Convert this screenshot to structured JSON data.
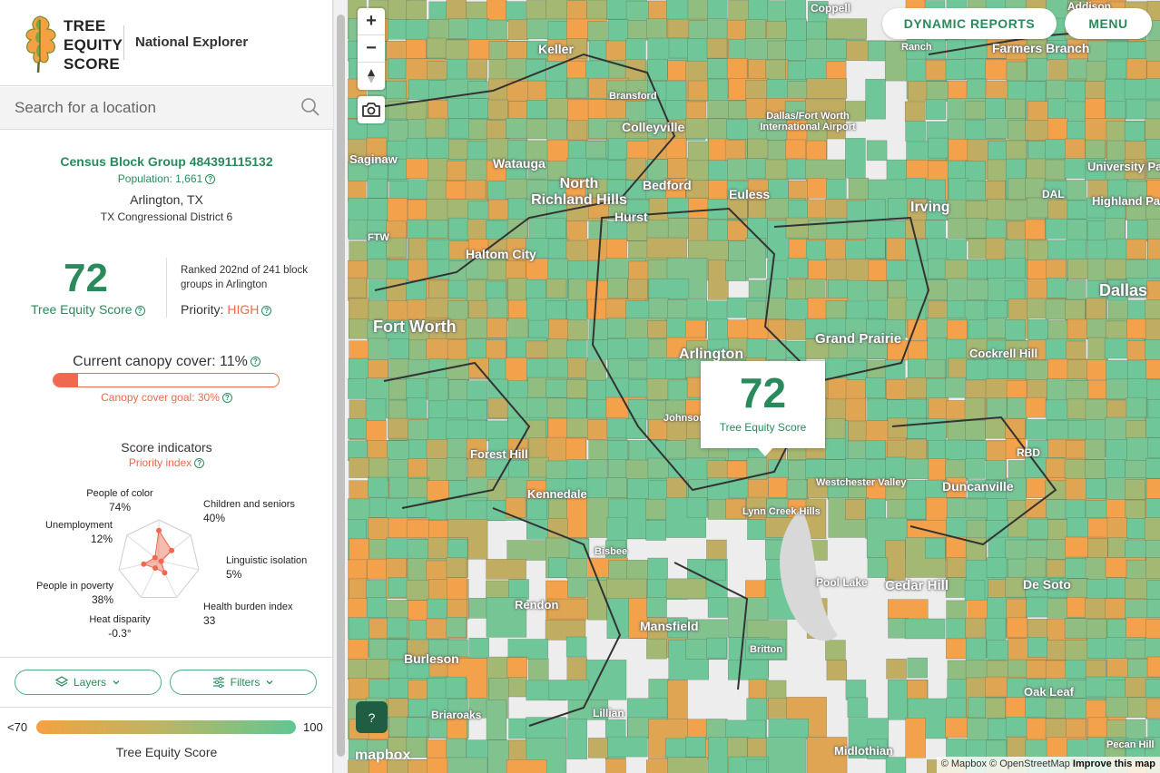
{
  "header": {
    "logo_lines": [
      "TREE",
      "EQUITY",
      "SCORE"
    ],
    "subtitle": "National Explorer"
  },
  "search": {
    "placeholder": "Search for a location"
  },
  "block": {
    "title": "Census Block Group 484391115132",
    "population": "Population: 1,661",
    "city": "Arlington, TX",
    "district": "TX Congressional District 6"
  },
  "score": {
    "value": "72",
    "label": "Tree Equity Score",
    "ranked": "Ranked 202nd of 241 block groups in Arlington",
    "priority_label": "Priority:",
    "priority_value": "HIGH"
  },
  "canopy": {
    "title": "Current canopy cover: 11%",
    "cover_pct": 11,
    "goal": "Canopy cover goal: 30%"
  },
  "indicators": {
    "title": "Score indicators",
    "subtitle": "Priority index",
    "items": [
      {
        "name": "People of color",
        "value": "74%"
      },
      {
        "name": "Children and seniors",
        "value": "40%"
      },
      {
        "name": "Linguistic isolation",
        "value": "5%"
      },
      {
        "name": "Health burden index",
        "value": "33"
      },
      {
        "name": "Heat disparity",
        "value": "-0.3°"
      },
      {
        "name": "People in poverty",
        "value": "38%"
      },
      {
        "name": "Unemployment",
        "value": "12%"
      }
    ],
    "levels": [
      0.74,
      0.4,
      0.05,
      0.33,
      0.2,
      0.38,
      0.12
    ]
  },
  "controls": {
    "layers": "Layers",
    "filters": "Filters"
  },
  "legend": {
    "min": "<70",
    "max": "100",
    "title": "Tree Equity Score",
    "colors": [
      "#f5a043",
      "#b9b665",
      "#5fc793"
    ]
  },
  "map": {
    "buttons": {
      "reports": "DYNAMIC REPORTS",
      "menu": "MENU"
    },
    "popup": {
      "score": "72",
      "label": "Tree Equity Score"
    },
    "help": "?",
    "mapbox": "mapbox",
    "attribution": "© Mapbox © OpenStreetMap",
    "improve": "Improve this map",
    "labels": [
      "Keller",
      "Colleyville",
      "Saginaw",
      "Watauga",
      "North Richland Hills",
      "Bedford",
      "Hurst",
      "Euless",
      "Irving",
      "Dallas/Fort Worth International Airport",
      "Haltom City",
      "Fort Worth",
      "Arlington",
      "Grand Prairie",
      "Dallas",
      "Cockrell Hill",
      "Forest Hill",
      "Kennedale",
      "Duncanville",
      "Cedar Hill",
      "De Soto",
      "Mansfield",
      "Rendon",
      "Burleson",
      "Briaroaks",
      "Lillian",
      "Midlothian",
      "Oak Leaf",
      "Farmers Branch",
      "University Park",
      "Highland Park",
      "Westchester Valley",
      "Lynn Creek Hills",
      "Pool Lake",
      "Britton",
      "Bisbee",
      "Johnson Station",
      "Bransford",
      "Addison",
      "Coppell",
      "DAL",
      "FTW",
      "RBD",
      "Pecan Hill",
      "Ranch"
    ]
  },
  "colors": {
    "brand": "#2a8a5c",
    "alert": "#f0684f"
  }
}
